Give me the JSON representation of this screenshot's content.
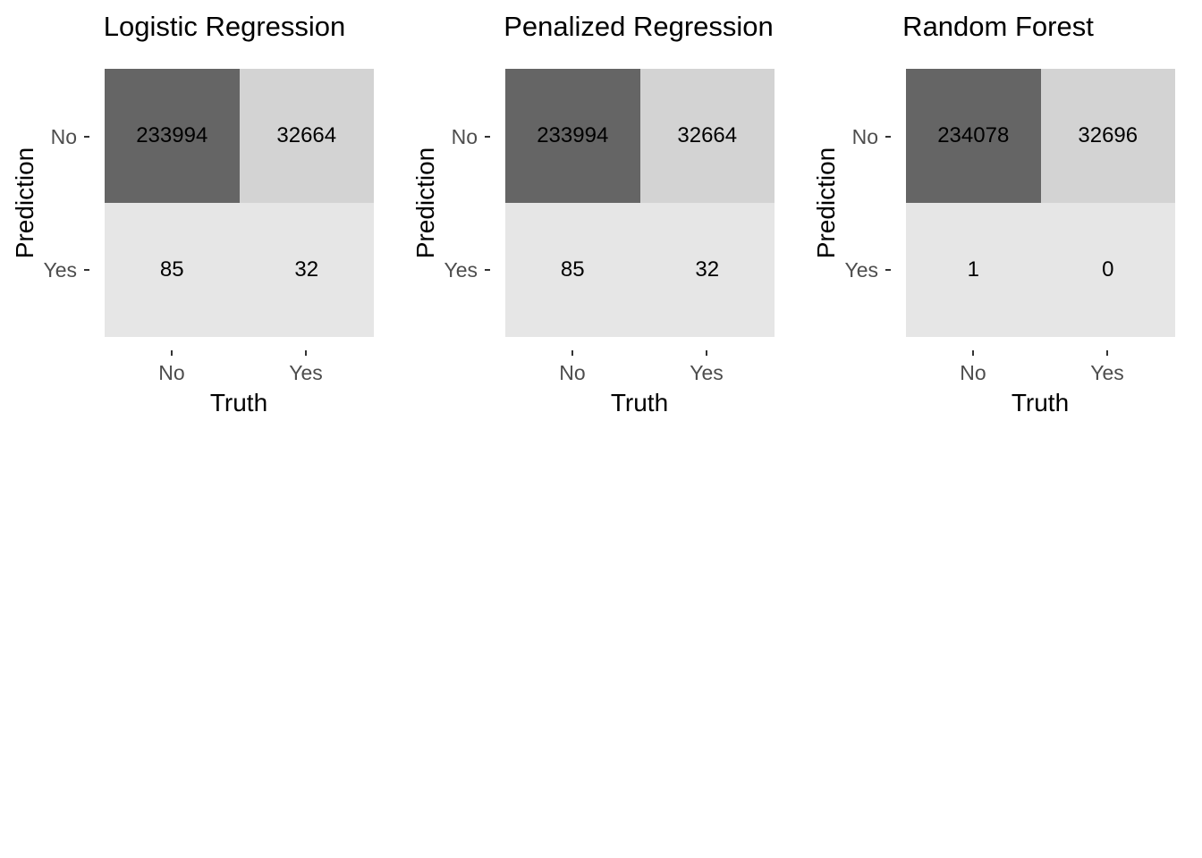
{
  "figure": {
    "background": "#ffffff",
    "colors": {
      "tile_high": "#656565",
      "tile_mid": "#d3d3d3",
      "tile_low": "#e6e6e6",
      "tick_mark": "#333333",
      "tick_label": "#4d4d4d",
      "text": "#000000"
    },
    "axis": {
      "x_title": "Truth",
      "y_title": "Prediction",
      "x_tick_no": "No",
      "x_tick_yes": "Yes",
      "y_tick_no": "No",
      "y_tick_yes": "Yes"
    },
    "panels": [
      {
        "title": "Logistic Regression",
        "cells": [
          {
            "value": "233994",
            "fill": "#656565"
          },
          {
            "value": "32664",
            "fill": "#d3d3d3"
          },
          {
            "value": "85",
            "fill": "#e6e6e6"
          },
          {
            "value": "32",
            "fill": "#e6e6e6"
          }
        ]
      },
      {
        "title": "Penalized Regression",
        "cells": [
          {
            "value": "233994",
            "fill": "#656565"
          },
          {
            "value": "32664",
            "fill": "#d3d3d3"
          },
          {
            "value": "85",
            "fill": "#e6e6e6"
          },
          {
            "value": "32",
            "fill": "#e6e6e6"
          }
        ]
      },
      {
        "title": "Random Forest",
        "cells": [
          {
            "value": "234078",
            "fill": "#656565"
          },
          {
            "value": "32696",
            "fill": "#d3d3d3"
          },
          {
            "value": "1",
            "fill": "#e6e6e6"
          },
          {
            "value": "0",
            "fill": "#e6e6e6"
          }
        ]
      }
    ]
  },
  "chart_data": [
    {
      "type": "heatmap",
      "title": "Logistic Regression",
      "xlabel": "Truth",
      "ylabel": "Prediction",
      "x_categories": [
        "No",
        "Yes"
      ],
      "y_categories": [
        "No",
        "Yes"
      ],
      "values": [
        [
          233994,
          32664
        ],
        [
          85,
          32
        ]
      ],
      "legend": "none",
      "grid": false
    },
    {
      "type": "heatmap",
      "title": "Penalized Regression",
      "xlabel": "Truth",
      "ylabel": "Prediction",
      "x_categories": [
        "No",
        "Yes"
      ],
      "y_categories": [
        "No",
        "Yes"
      ],
      "values": [
        [
          233994,
          32664
        ],
        [
          85,
          32
        ]
      ],
      "legend": "none",
      "grid": false
    },
    {
      "type": "heatmap",
      "title": "Random Forest",
      "xlabel": "Truth",
      "ylabel": "Prediction",
      "x_categories": [
        "No",
        "Yes"
      ],
      "y_categories": [
        "No",
        "Yes"
      ],
      "values": [
        [
          234078,
          32696
        ],
        [
          1,
          0
        ]
      ],
      "legend": "none",
      "grid": false
    }
  ]
}
